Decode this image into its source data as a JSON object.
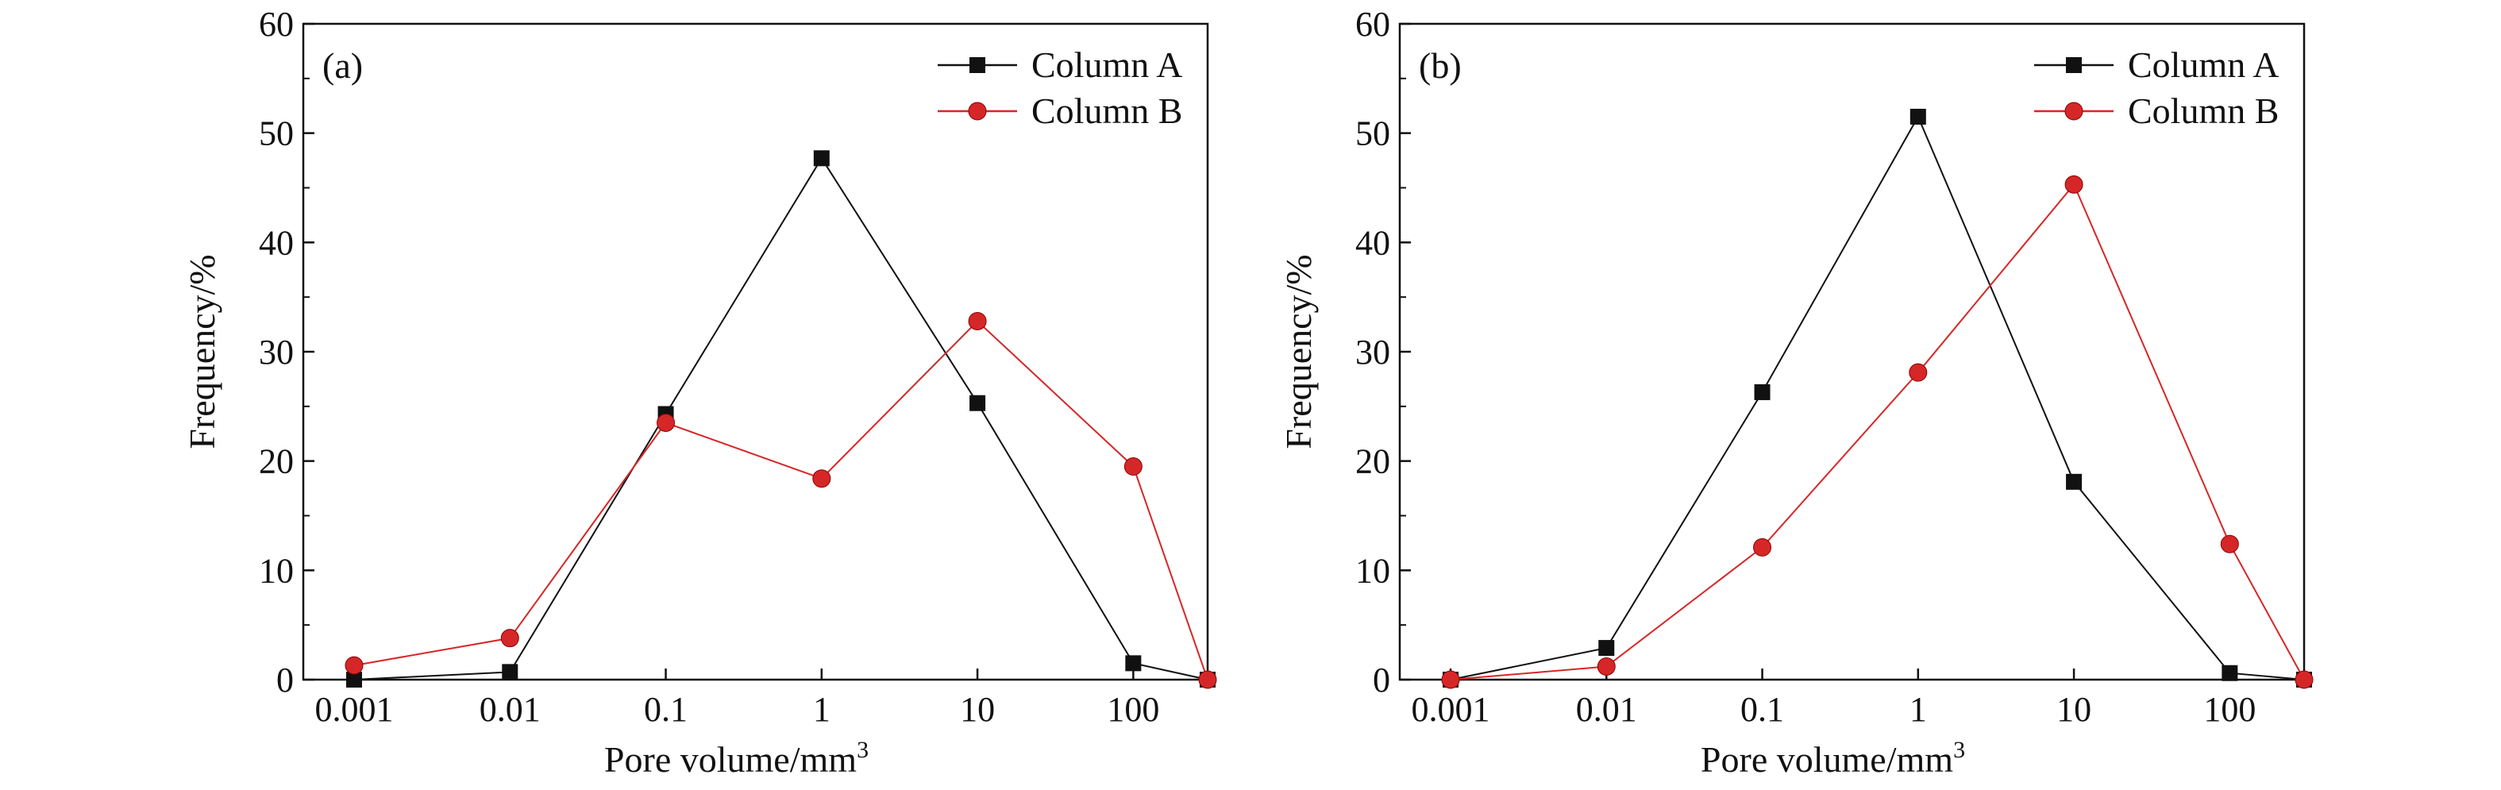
{
  "chart_data": [
    {
      "type": "line",
      "panel_label": "(a)",
      "xlabel": "Pore volume/mm",
      "xlabel_sup": "3",
      "ylabel": "Frequency/%",
      "x_scale": "log",
      "x": [
        0.001,
        0.01,
        0.1,
        1,
        10,
        100,
        300
      ],
      "x_tick_values": [
        0.001,
        0.01,
        0.1,
        1,
        10,
        100
      ],
      "x_ticks": [
        "0.001",
        "0.01",
        "0.1",
        "1",
        "10",
        "100"
      ],
      "ylim": [
        0,
        60
      ],
      "y_ticks": [
        "0",
        "10",
        "20",
        "30",
        "40",
        "50",
        "60"
      ],
      "legend_position": "top-right",
      "grid": false,
      "series": [
        {
          "name": "Column A",
          "marker": "square",
          "color": "#111111",
          "values": [
            0,
            0.7,
            24.3,
            47.7,
            25.3,
            1.5,
            0
          ]
        },
        {
          "name": "Column B",
          "marker": "circle",
          "color": "#d62728",
          "values": [
            1.3,
            3.8,
            23.5,
            18.4,
            32.8,
            19.5,
            0
          ]
        }
      ]
    },
    {
      "type": "line",
      "panel_label": "(b)",
      "xlabel": "Pore volume/mm",
      "xlabel_sup": "3",
      "ylabel": "Frequency/%",
      "x_scale": "log",
      "x": [
        0.001,
        0.01,
        0.1,
        1,
        10,
        100,
        300
      ],
      "x_tick_values": [
        0.001,
        0.01,
        0.1,
        1,
        10,
        100
      ],
      "x_ticks": [
        "0.001",
        "0.01",
        "0.1",
        "1",
        "10",
        "100"
      ],
      "ylim": [
        0,
        60
      ],
      "y_ticks": [
        "0",
        "10",
        "20",
        "30",
        "40",
        "50",
        "60"
      ],
      "legend_position": "top-right",
      "grid": false,
      "series": [
        {
          "name": "Column A",
          "marker": "square",
          "color": "#111111",
          "values": [
            0,
            2.9,
            26.3,
            51.5,
            18.1,
            0.6,
            0
          ]
        },
        {
          "name": "Column B",
          "marker": "circle",
          "color": "#d62728",
          "values": [
            0,
            1.2,
            12.1,
            28.1,
            45.3,
            12.4,
            0
          ]
        }
      ]
    }
  ]
}
